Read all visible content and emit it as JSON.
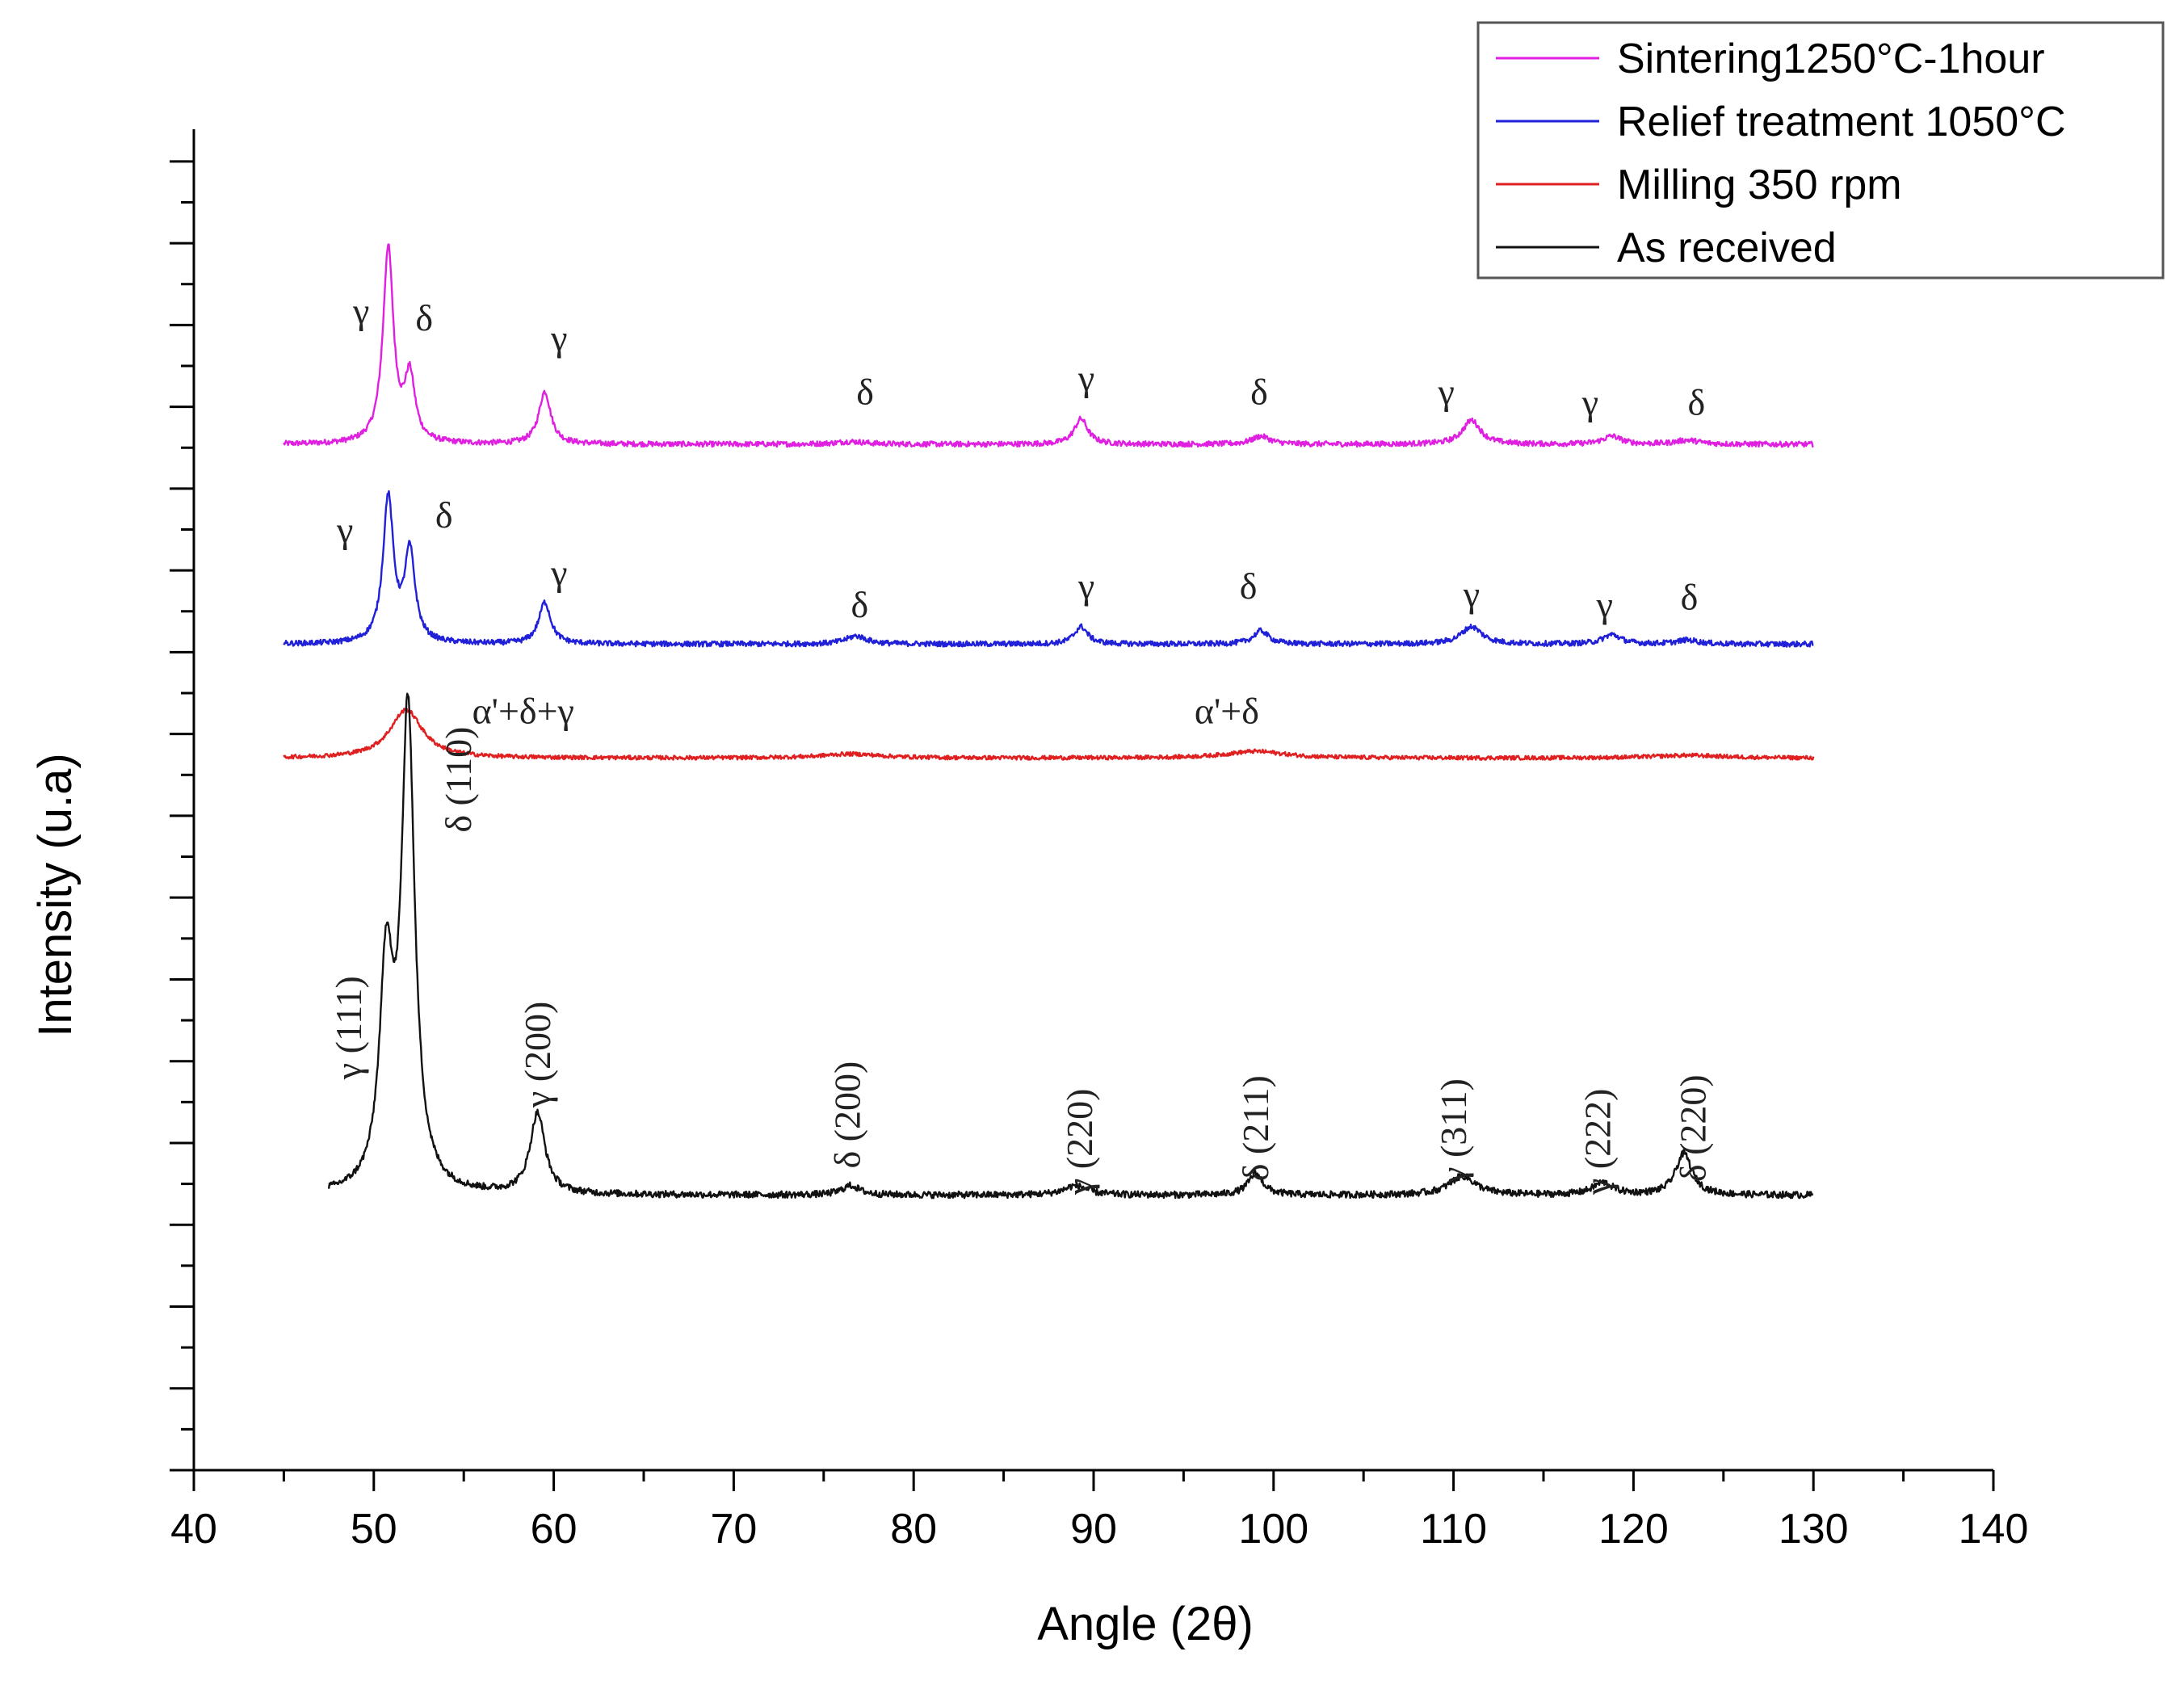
{
  "chart_data": {
    "type": "line",
    "title": "",
    "xlabel": "Angle (2θ)",
    "ylabel": "Intensity (u.a)",
    "xlim": [
      40,
      140
    ],
    "x_ticks": [
      "40",
      "50",
      "60",
      "70",
      "80",
      "90",
      "100",
      "110",
      "120",
      "130",
      "140"
    ],
    "y_tick_labels": false,
    "legend_position": "top-right",
    "series": [
      {
        "name": "Sintering1250°C-1hour",
        "color": "#e020e0",
        "x_range": [
          45,
          130
        ],
        "baseline": 0.765,
        "noise": 0.002,
        "peaks": [
          {
            "x": 50.8,
            "h": 0.145,
            "w": 0.35
          },
          {
            "x": 52.0,
            "h": 0.048,
            "w": 0.35
          },
          {
            "x": 59.5,
            "h": 0.039,
            "w": 0.4
          },
          {
            "x": 76.5,
            "h": 0.002,
            "w": 1.0
          },
          {
            "x": 89.3,
            "h": 0.019,
            "w": 0.45
          },
          {
            "x": 99.3,
            "h": 0.006,
            "w": 0.6
          },
          {
            "x": 111.0,
            "h": 0.018,
            "w": 0.6
          },
          {
            "x": 118.8,
            "h": 0.006,
            "w": 0.6
          },
          {
            "x": 123.0,
            "h": 0.003,
            "w": 0.8
          }
        ]
      },
      {
        "name": "Relief treatment 1050°C",
        "color": "#2020d8",
        "x_range": [
          45,
          130
        ],
        "baseline": 0.616,
        "noise": 0.002,
        "peaks": [
          {
            "x": 50.8,
            "h": 0.108,
            "w": 0.35
          },
          {
            "x": 52.0,
            "h": 0.067,
            "w": 0.35
          },
          {
            "x": 59.5,
            "h": 0.031,
            "w": 0.4
          },
          {
            "x": 76.8,
            "h": 0.006,
            "w": 0.7
          },
          {
            "x": 89.3,
            "h": 0.013,
            "w": 0.45
          },
          {
            "x": 99.3,
            "h": 0.01,
            "w": 0.5
          },
          {
            "x": 111.0,
            "h": 0.013,
            "w": 0.7
          },
          {
            "x": 118.8,
            "h": 0.007,
            "w": 0.6
          },
          {
            "x": 123.0,
            "h": 0.003,
            "w": 0.7
          }
        ]
      },
      {
        "name": "Milling 350 rpm",
        "color": "#e02020",
        "x_range": [
          45,
          130
        ],
        "baseline": 0.531,
        "noise": 0.0015,
        "peaks": [
          {
            "x": 51.8,
            "h": 0.036,
            "w": 1.1
          },
          {
            "x": 76.5,
            "h": 0.003,
            "w": 2.0
          },
          {
            "x": 99.0,
            "h": 0.005,
            "w": 2.0
          },
          {
            "x": 123.0,
            "h": 0.002,
            "w": 2.5
          }
        ]
      },
      {
        "name": "As received",
        "color": "#111111",
        "x_range": [
          47.5,
          130
        ],
        "baseline": 0.205,
        "noise": 0.0025,
        "peaks": [
          {
            "x": 50.7,
            "h": 0.16,
            "w": 0.45
          },
          {
            "x": 51.9,
            "h": 0.355,
            "w": 0.45
          },
          {
            "x": 59.1,
            "h": 0.06,
            "w": 0.5
          },
          {
            "x": 76.5,
            "h": 0.007,
            "w": 0.6
          },
          {
            "x": 89.0,
            "h": 0.007,
            "w": 0.8
          },
          {
            "x": 99.0,
            "h": 0.016,
            "w": 0.5
          },
          {
            "x": 110.5,
            "h": 0.014,
            "w": 0.9
          },
          {
            "x": 118.3,
            "h": 0.009,
            "w": 0.7
          },
          {
            "x": 122.8,
            "h": 0.031,
            "w": 0.55
          }
        ]
      }
    ],
    "annotations": [
      {
        "series": "Sintering1250°C-1hour",
        "text": "γ",
        "x": 49.3,
        "y": 0.855,
        "rotate": false
      },
      {
        "series": "Sintering1250°C-1hour",
        "text": "δ",
        "x": 52.8,
        "y": 0.85,
        "rotate": false
      },
      {
        "series": "Sintering1250°C-1hour",
        "text": "γ",
        "x": 60.3,
        "y": 0.835,
        "rotate": false
      },
      {
        "series": "Sintering1250°C-1hour",
        "text": "δ",
        "x": 77.3,
        "y": 0.795,
        "rotate": false
      },
      {
        "series": "Sintering1250°C-1hour",
        "text": "γ",
        "x": 89.6,
        "y": 0.805,
        "rotate": false
      },
      {
        "series": "Sintering1250°C-1hour",
        "text": "δ",
        "x": 99.2,
        "y": 0.795,
        "rotate": false
      },
      {
        "series": "Sintering1250°C-1hour",
        "text": "γ",
        "x": 109.6,
        "y": 0.795,
        "rotate": false
      },
      {
        "series": "Sintering1250°C-1hour",
        "text": "γ",
        "x": 117.6,
        "y": 0.787,
        "rotate": false
      },
      {
        "series": "Sintering1250°C-1hour",
        "text": "δ",
        "x": 123.5,
        "y": 0.787,
        "rotate": false
      },
      {
        "series": "Relief treatment 1050°C",
        "text": "γ",
        "x": 48.4,
        "y": 0.692,
        "rotate": false
      },
      {
        "series": "Relief treatment 1050°C",
        "text": "δ",
        "x": 53.9,
        "y": 0.703,
        "rotate": false
      },
      {
        "series": "Relief treatment 1050°C",
        "text": "γ",
        "x": 60.3,
        "y": 0.66,
        "rotate": false
      },
      {
        "series": "Relief treatment 1050°C",
        "text": "δ",
        "x": 77.0,
        "y": 0.636,
        "rotate": false
      },
      {
        "series": "Relief treatment 1050°C",
        "text": "γ",
        "x": 89.6,
        "y": 0.65,
        "rotate": false
      },
      {
        "series": "Relief treatment 1050°C",
        "text": "δ",
        "x": 98.6,
        "y": 0.65,
        "rotate": false
      },
      {
        "series": "Relief treatment 1050°C",
        "text": "γ",
        "x": 111.0,
        "y": 0.644,
        "rotate": false
      },
      {
        "series": "Relief treatment 1050°C",
        "text": "γ",
        "x": 118.4,
        "y": 0.636,
        "rotate": false
      },
      {
        "series": "Relief treatment 1050°C",
        "text": "δ",
        "x": 123.1,
        "y": 0.642,
        "rotate": false
      },
      {
        "series": "Milling 350 rpm",
        "text": "α'+δ+γ",
        "x": 58.3,
        "y": 0.557,
        "rotate": false
      },
      {
        "series": "Milling 350 rpm",
        "text": "α'+δ",
        "x": 97.4,
        "y": 0.557,
        "rotate": false
      },
      {
        "series": "As received",
        "text": "γ (111)",
        "x": 49.3,
        "y": 0.33,
        "rotate": true
      },
      {
        "series": "As received",
        "text": "δ (110)",
        "x": 55.4,
        "y": 0.515,
        "rotate": true
      },
      {
        "series": "As received",
        "text": "γ (200)",
        "x": 59.8,
        "y": 0.31,
        "rotate": true
      },
      {
        "series": "As received",
        "text": "δ (200)",
        "x": 77.0,
        "y": 0.265,
        "rotate": true
      },
      {
        "series": "As received",
        "text": "γ (220)",
        "x": 89.9,
        "y": 0.245,
        "rotate": true
      },
      {
        "series": "As received",
        "text": "δ (211)",
        "x": 99.7,
        "y": 0.255,
        "rotate": true
      },
      {
        "series": "As received",
        "text": "γ (311)",
        "x": 110.7,
        "y": 0.253,
        "rotate": true
      },
      {
        "series": "As received",
        "text": "γ (222)",
        "x": 118.7,
        "y": 0.245,
        "rotate": true
      },
      {
        "series": "As received",
        "text": "δ (220)",
        "x": 124.0,
        "y": 0.255,
        "rotate": true
      }
    ]
  }
}
